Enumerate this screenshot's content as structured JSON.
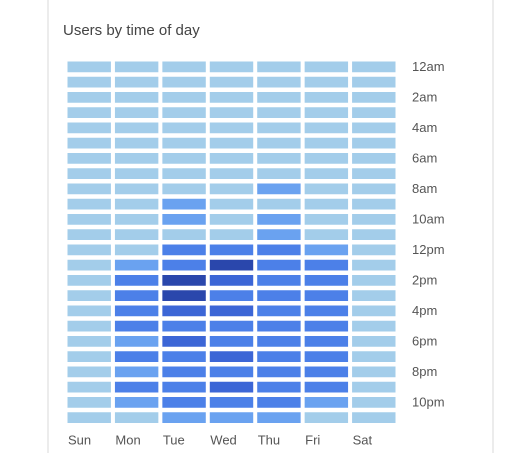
{
  "chart_data": {
    "type": "heatmap",
    "title": "Users by time of day",
    "categories": [
      "Sun",
      "Mon",
      "Tue",
      "Wed",
      "Thu",
      "Fri",
      "Sat"
    ],
    "rows": [
      "12am",
      null,
      "2am",
      null,
      "4am",
      null,
      "6am",
      null,
      "8am",
      null,
      "10am",
      null,
      "12pm",
      null,
      "2pm",
      null,
      "4pm",
      null,
      "6pm",
      null,
      "8pm",
      null,
      "10pm",
      null
    ],
    "colors": [
      "#a3cdea",
      "#6aa2f0",
      "#4c80e8",
      "#3c66d6",
      "#2a47ac"
    ],
    "values": [
      [
        0,
        0,
        0,
        0,
        0,
        0,
        0,
        0,
        0,
        0,
        0,
        0,
        0,
        0,
        0,
        0,
        0,
        0,
        0,
        0,
        0,
        0,
        0,
        0
      ],
      [
        0,
        0,
        0,
        0,
        0,
        0,
        0,
        0,
        0,
        0,
        0,
        0,
        0,
        1,
        2,
        2,
        2,
        2,
        1,
        2,
        1,
        2,
        1,
        0
      ],
      [
        0,
        0,
        0,
        0,
        0,
        0,
        0,
        0,
        0,
        1,
        1,
        0,
        2,
        2,
        4,
        4,
        3,
        2,
        3,
        2,
        2,
        2,
        2,
        1
      ],
      [
        0,
        0,
        0,
        0,
        0,
        0,
        0,
        0,
        0,
        0,
        0,
        0,
        2,
        4,
        3,
        2,
        3,
        2,
        2,
        3,
        2,
        3,
        2,
        1
      ],
      [
        0,
        0,
        0,
        0,
        0,
        0,
        0,
        0,
        1,
        0,
        1,
        1,
        2,
        2,
        2,
        2,
        2,
        2,
        2,
        2,
        2,
        2,
        2,
        1
      ],
      [
        0,
        0,
        0,
        0,
        0,
        0,
        0,
        0,
        0,
        0,
        0,
        0,
        1,
        2,
        2,
        2,
        2,
        2,
        2,
        2,
        2,
        2,
        1,
        0
      ],
      [
        0,
        0,
        0,
        0,
        0,
        0,
        0,
        0,
        0,
        0,
        0,
        0,
        0,
        0,
        0,
        0,
        0,
        0,
        0,
        0,
        0,
        0,
        0,
        0
      ]
    ]
  }
}
